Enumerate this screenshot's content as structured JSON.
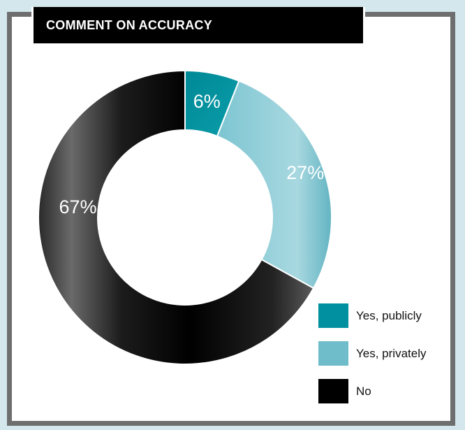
{
  "title": "COMMENT ON ACCURACY",
  "colors": {
    "publicly": "#00909f",
    "privately": "#6fbdca",
    "no": "#000000",
    "frame": "#6e6e6e",
    "background": "#d3e7ec"
  },
  "chart_data": {
    "type": "pie",
    "variant": "donut",
    "title": "COMMENT ON ACCURACY",
    "series": [
      {
        "name": "Yes, publicly",
        "value": 6,
        "label": "6%"
      },
      {
        "name": "Yes, privately",
        "value": 27,
        "label": "27%"
      },
      {
        "name": "No",
        "value": 67,
        "label": "67%"
      }
    ],
    "legend_position": "bottom-right"
  },
  "legend": [
    {
      "label": "Yes, publicly",
      "color_key": "publicly"
    },
    {
      "label": "Yes, privately",
      "color_key": "privately"
    },
    {
      "label": "No",
      "color_key": "no"
    }
  ]
}
